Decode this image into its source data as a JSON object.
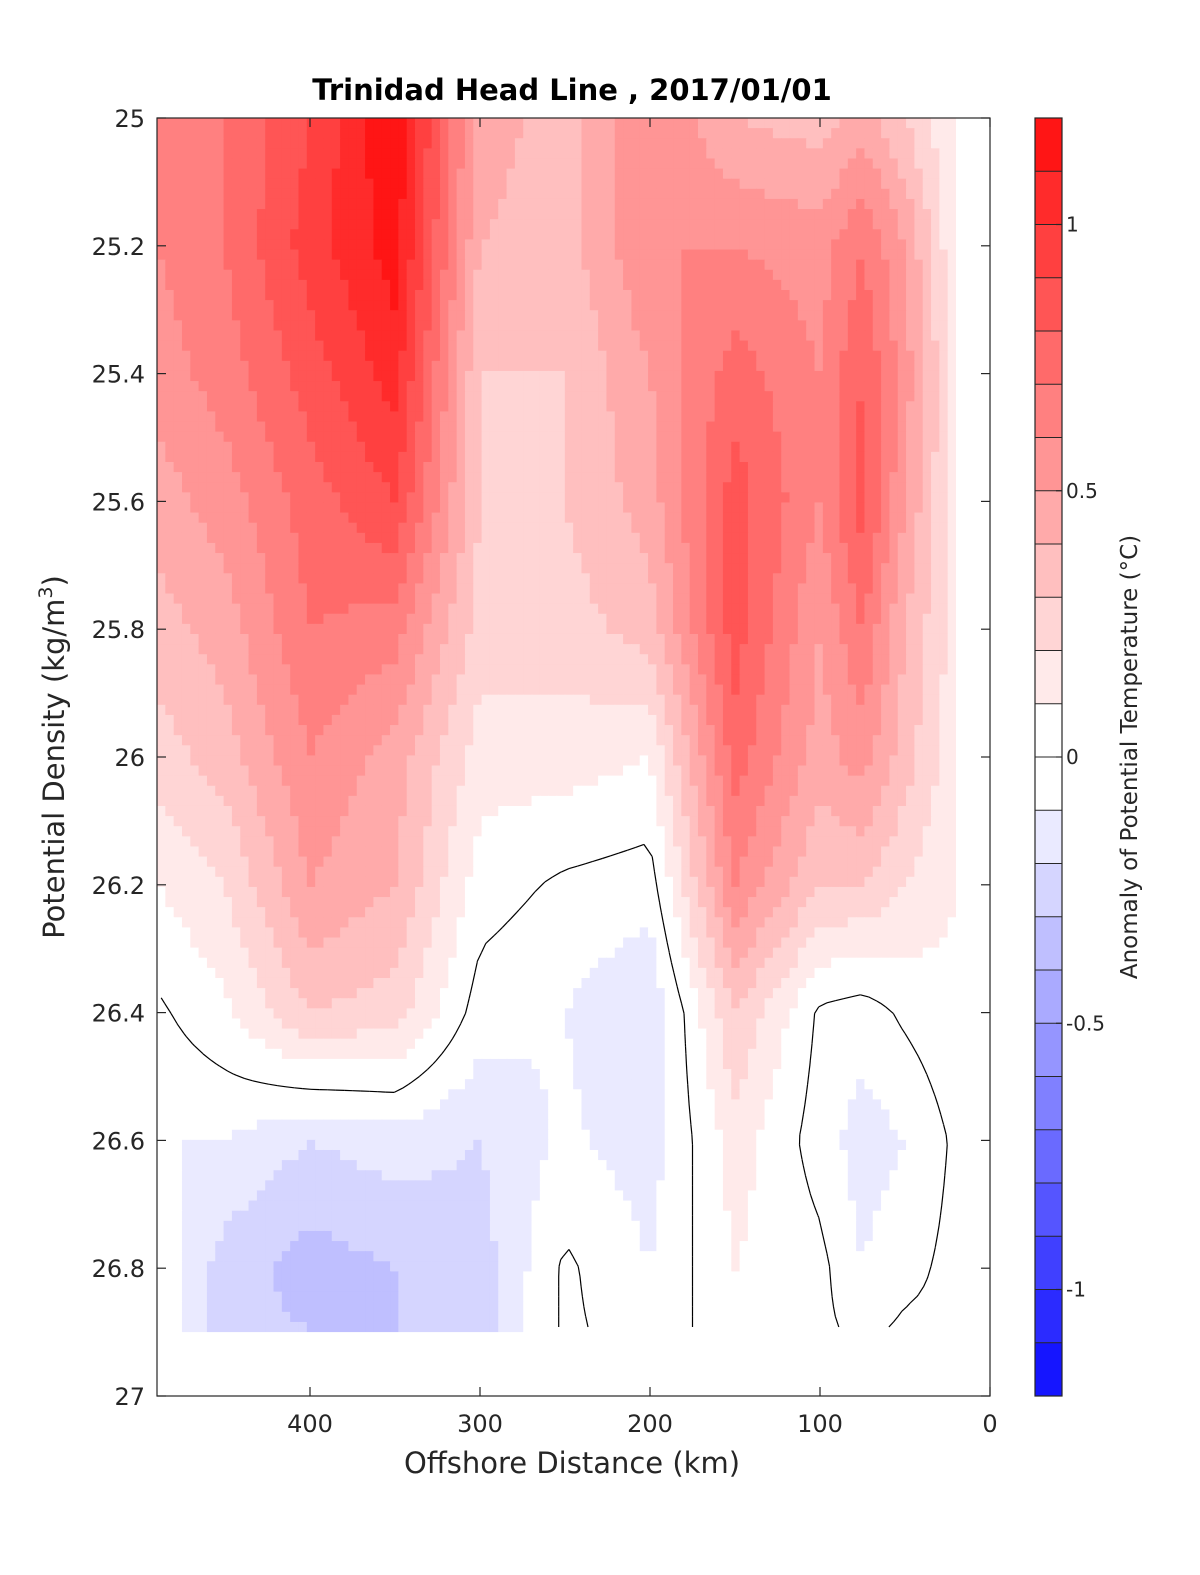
{
  "chart_data": {
    "type": "heatmap",
    "title": "Trinidad Head Line , 2017/01/01",
    "xlabel": "Offshore Distance (km)",
    "ylabel": "Potential Density (kg/m³)",
    "ylabel_parts": {
      "main": "Potential Density (kg/m",
      "sup": "3",
      "end": ")"
    },
    "x_reversed": true,
    "y_reversed": true,
    "xlim": [
      0,
      490
    ],
    "ylim": [
      25,
      27
    ],
    "x_ticks": [
      400,
      300,
      200,
      100,
      0
    ],
    "x_tick_labels": [
      "400",
      "300",
      "200",
      "100",
      "0"
    ],
    "y_ticks": [
      25,
      25.2,
      25.4,
      25.6,
      25.8,
      26,
      26.2,
      26.4,
      26.6,
      26.8,
      27
    ],
    "y_tick_labels": [
      "25",
      "25.2",
      "25.4",
      "25.6",
      "25.8",
      "26",
      "26.2",
      "26.4",
      "26.6",
      "26.8",
      "27"
    ],
    "colorbar": {
      "label": "Anomaly of Potential Temperature (°C)",
      "range": [
        -1.2,
        1.2
      ],
      "step": 0.1,
      "ticks": [
        1,
        0.5,
        0,
        -0.5,
        -1
      ],
      "tick_labels": [
        "1",
        "0.5",
        "0",
        "-0.5",
        "-1"
      ],
      "min_color": "#0000ff",
      "zero_color": "#ffffff",
      "max_color": "#ff0000"
    },
    "zero_contour_color": "#000000",
    "x": [
      490,
      450,
      400,
      350,
      300,
      250,
      200,
      150,
      100,
      75,
      50,
      20
    ],
    "y": [
      25.0,
      25.2,
      25.4,
      25.6,
      25.8,
      26.0,
      26.2,
      26.4,
      26.6,
      26.8,
      26.9
    ],
    "values": [
      [
        0.6,
        0.7,
        0.9,
        1.2,
        0.45,
        0.35,
        0.6,
        0.4,
        0.35,
        0.45,
        0.3,
        0.1
      ],
      [
        0.6,
        0.7,
        0.95,
        1.15,
        0.4,
        0.35,
        0.6,
        0.6,
        0.55,
        0.7,
        0.5,
        0.1
      ],
      [
        0.55,
        0.65,
        0.85,
        1.05,
        0.3,
        0.3,
        0.5,
        0.75,
        0.6,
        0.8,
        0.55,
        0.15
      ],
      [
        0.45,
        0.55,
        0.75,
        0.9,
        0.3,
        0.3,
        0.45,
        0.85,
        0.6,
        0.85,
        0.5,
        0.15
      ],
      [
        0.35,
        0.45,
        0.7,
        0.65,
        0.25,
        0.25,
        0.35,
        0.85,
        0.5,
        0.7,
        0.4,
        0.15
      ],
      [
        0.25,
        0.35,
        0.6,
        0.45,
        0.15,
        0.15,
        0.1,
        0.75,
        0.45,
        0.55,
        0.35,
        0.12
      ],
      [
        0.1,
        0.2,
        0.5,
        0.4,
        0.05,
        -0.02,
        -0.05,
        0.6,
        0.3,
        0.3,
        0.2,
        0.1
      ],
      [
        -0.02,
        0.08,
        0.3,
        0.25,
        -0.05,
        -0.1,
        -0.2,
        0.3,
        -0.02,
        -0.05,
        0.02,
        0.08
      ],
      [
        -0.1,
        -0.1,
        -0.2,
        -0.15,
        -0.2,
        -0.08,
        -0.15,
        0.15,
        -0.05,
        -0.15,
        -0.1,
        0.02
      ],
      [
        -0.02,
        -0.25,
        -0.35,
        -0.3,
        -0.25,
        0.02,
        -0.1,
        0.1,
        0.03,
        -0.1,
        -0.03,
        0.03
      ],
      [
        -0.02,
        -0.25,
        -0.3,
        -0.3,
        -0.25,
        0.02,
        -0.05,
        0.05,
        0.02,
        -0.02,
        0.02,
        0.02
      ]
    ]
  }
}
